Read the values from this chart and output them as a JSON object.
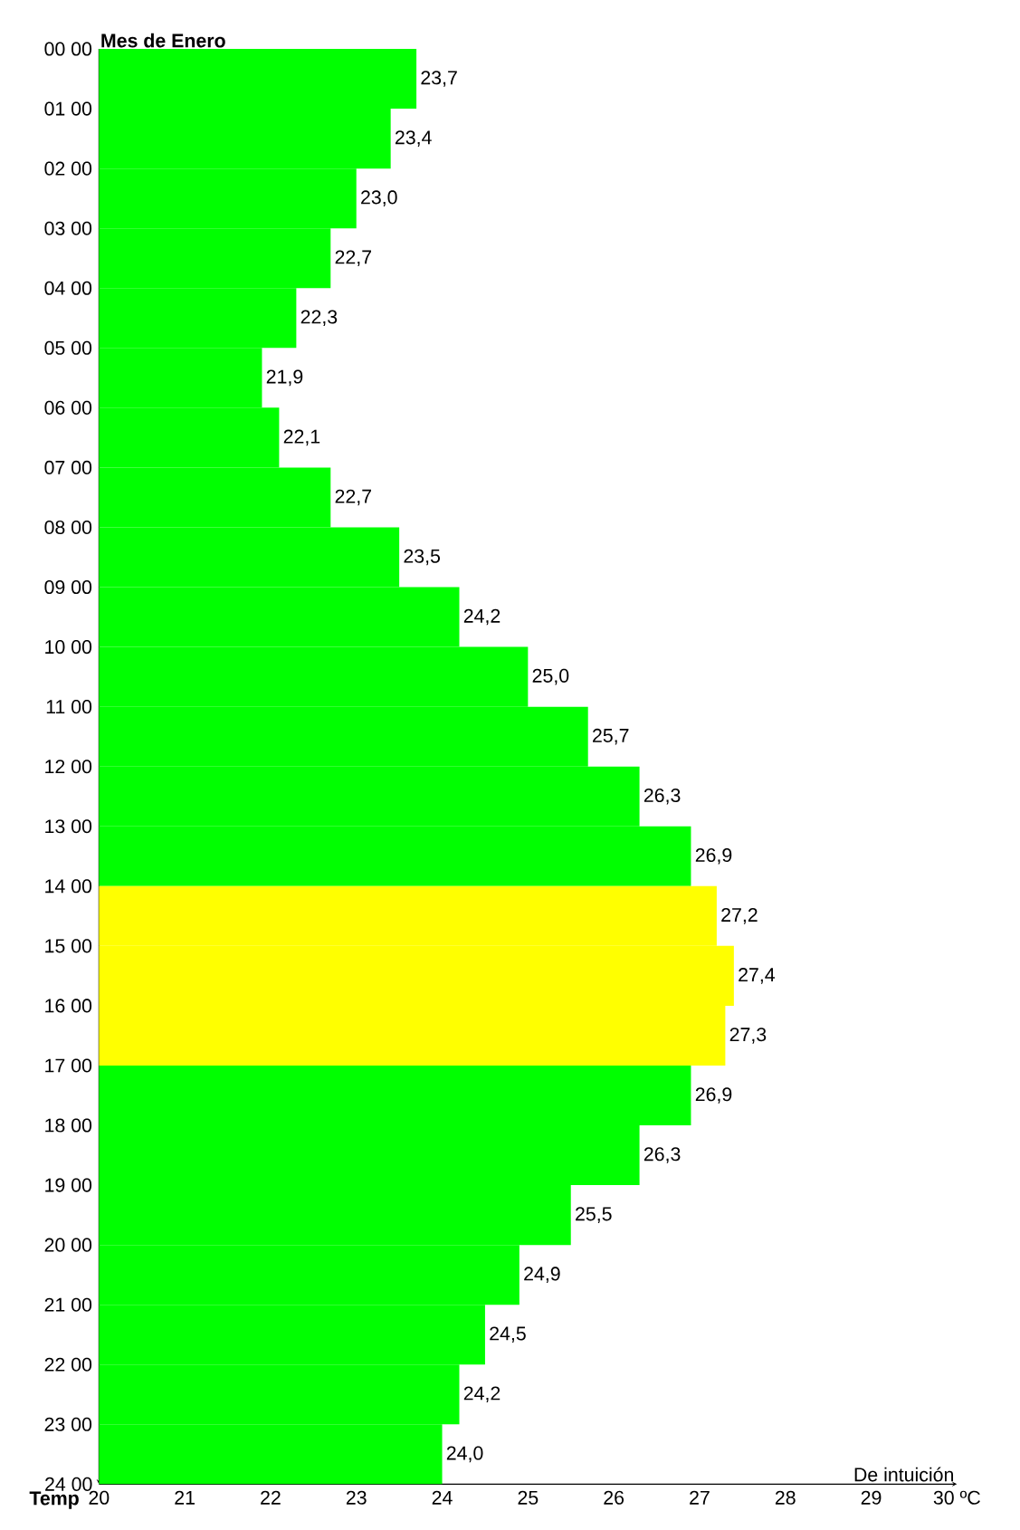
{
  "chart_data": {
    "type": "bar",
    "orientation": "horizontal",
    "title": "Mes de Enero",
    "xlabel": "De intuición",
    "annotations": [
      "Temp",
      "24 00"
    ],
    "categories": [
      "00 00",
      "01 00",
      "02 00",
      "03 00",
      "04 00",
      "05 00",
      "06 00",
      "07 00",
      "08 00",
      "09 00",
      "10 00",
      "11 00",
      "12 00",
      "13 00",
      "14 00",
      "15 00",
      "16 00",
      "17 00",
      "18 00",
      "19 00",
      "20 00",
      "21 00",
      "22 00",
      "23 00"
    ],
    "values": [
      23.7,
      23.4,
      23.0,
      22.7,
      22.3,
      21.9,
      22.1,
      22.7,
      23.5,
      24.2,
      25.0,
      25.7,
      26.3,
      26.9,
      27.2,
      27.4,
      27.3,
      26.9,
      26.3,
      25.5,
      24.9,
      24.5,
      24.2,
      24.0
    ],
    "value_labels": [
      "23,7",
      "23,4",
      "23,0",
      "22,7",
      "22,3",
      "21,9",
      "22,1",
      "22,7",
      "23,5",
      "24,2",
      "25,0",
      "25,7",
      "26,3",
      "26,9",
      "27,2",
      "27,4",
      "27,3",
      "26,9",
      "26,3",
      "25,5",
      "24,9",
      "24,5",
      "24,2",
      "24,0"
    ],
    "colors": [
      "#00ff00",
      "#00ff00",
      "#00ff00",
      "#00ff00",
      "#00ff00",
      "#00ff00",
      "#00ff00",
      "#00ff00",
      "#00ff00",
      "#00ff00",
      "#00ff00",
      "#00ff00",
      "#00ff00",
      "#00ff00",
      "#ffff00",
      "#ffff00",
      "#ffff00",
      "#00ff00",
      "#00ff00",
      "#00ff00",
      "#00ff00",
      "#00ff00",
      "#00ff00",
      "#00ff00"
    ],
    "xlim": [
      20,
      30
    ],
    "xticks": [
      20,
      21,
      22,
      23,
      24,
      25,
      26,
      27,
      28,
      29,
      {
        "value": 30,
        "label": "30 ºC"
      }
    ],
    "grid": false
  }
}
